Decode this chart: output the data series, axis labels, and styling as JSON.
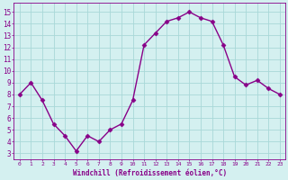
{
  "x": [
    0,
    1,
    2,
    3,
    4,
    5,
    6,
    7,
    8,
    9,
    10,
    11,
    12,
    13,
    14,
    15,
    16,
    17,
    18,
    19,
    20,
    21,
    22,
    23
  ],
  "y": [
    8.0,
    9.0,
    7.5,
    5.5,
    4.5,
    3.2,
    4.5,
    4.0,
    5.0,
    5.5,
    7.5,
    12.2,
    13.2,
    14.2,
    14.5,
    15.0,
    14.5,
    14.2,
    12.2,
    9.5,
    8.8,
    9.2,
    8.5,
    8.0
  ],
  "line_color": "#880088",
  "marker": "D",
  "markersize": 2.5,
  "linewidth": 1.0,
  "background_color": "#d4f0f0",
  "grid_color": "#a8d8d8",
  "xlabel": "Windchill (Refroidissement éolien,°C)",
  "xlabel_color": "#880088",
  "tick_color": "#880088",
  "ylabel_ticks": [
    3,
    4,
    5,
    6,
    7,
    8,
    9,
    10,
    11,
    12,
    13,
    14,
    15
  ],
  "xlim": [
    -0.5,
    23.5
  ],
  "ylim": [
    2.5,
    15.8
  ],
  "xticks": [
    0,
    1,
    2,
    3,
    4,
    5,
    6,
    7,
    8,
    9,
    10,
    11,
    12,
    13,
    14,
    15,
    16,
    17,
    18,
    19,
    20,
    21,
    22,
    23
  ]
}
